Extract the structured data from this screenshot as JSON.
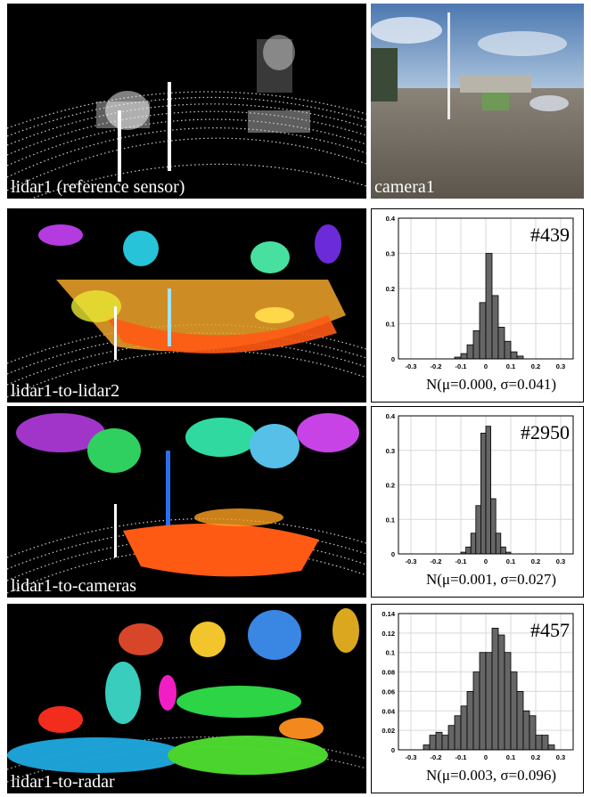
{
  "panels": {
    "p1_label": "lidar1 (reference sensor)",
    "p2_label": "camera1",
    "p3_label": "lidar1-to-lidar2",
    "p4_label": "lidar1-to-cameras",
    "p5_label": "lidar1-to-radar"
  },
  "chart_data": [
    {
      "type": "bar",
      "annotation": "#439",
      "xlabel": "N(μ=0.000, σ=0.041)",
      "xlim": [
        -0.35,
        0.35
      ],
      "ylim": [
        0,
        0.4
      ],
      "xticks": [
        "-0.3",
        "-0.2",
        "-0.1",
        "0",
        "0.1",
        "0.2",
        "0.3"
      ],
      "yticks": [
        "0",
        "0.1",
        "0.2",
        "0.3",
        "0.4"
      ],
      "grid": true,
      "bin_edges_start": -0.15,
      "bin_width": 0.025,
      "values": [
        0,
        0.005,
        0.015,
        0.04,
        0.08,
        0.16,
        0.3,
        0.18,
        0.09,
        0.05,
        0.02,
        0.008
      ]
    },
    {
      "type": "bar",
      "annotation": "#2950",
      "xlabel": "N(μ=0.001, σ=0.027)",
      "xlim": [
        -0.35,
        0.35
      ],
      "ylim": [
        0,
        0.4
      ],
      "xticks": [
        "-0.3",
        "-0.2",
        "-0.1",
        "0",
        "0.1",
        "0.2",
        "0.3"
      ],
      "yticks": [
        "0",
        "0.1",
        "0.2",
        "0.3",
        "0.4"
      ],
      "grid": true,
      "bin_edges_start": -0.1,
      "bin_width": 0.02,
      "values": [
        0.005,
        0.02,
        0.06,
        0.14,
        0.35,
        0.37,
        0.16,
        0.06,
        0.02,
        0.005
      ]
    },
    {
      "type": "bar",
      "annotation": "#457",
      "xlabel": "N(μ=0.003, σ=0.096)",
      "xlim": [
        -0.35,
        0.35
      ],
      "ylim": [
        0,
        0.14
      ],
      "xticks": [
        "-0.3",
        "-0.2",
        "-0.1",
        "0",
        "0.1",
        "0.2",
        "0.3"
      ],
      "yticks": [
        "0",
        "0.02",
        "0.04",
        "0.06",
        "0.08",
        "0.1",
        "0.12",
        "0.14"
      ],
      "grid": true,
      "bin_edges_start": -0.25,
      "bin_width": 0.025,
      "values": [
        0.005,
        0.015,
        0.018,
        0.015,
        0.025,
        0.035,
        0.045,
        0.06,
        0.08,
        0.1,
        0.1,
        0.125,
        0.118,
        0.1,
        0.08,
        0.06,
        0.04,
        0.035,
        0.015,
        0.015,
        0.005
      ]
    }
  ]
}
